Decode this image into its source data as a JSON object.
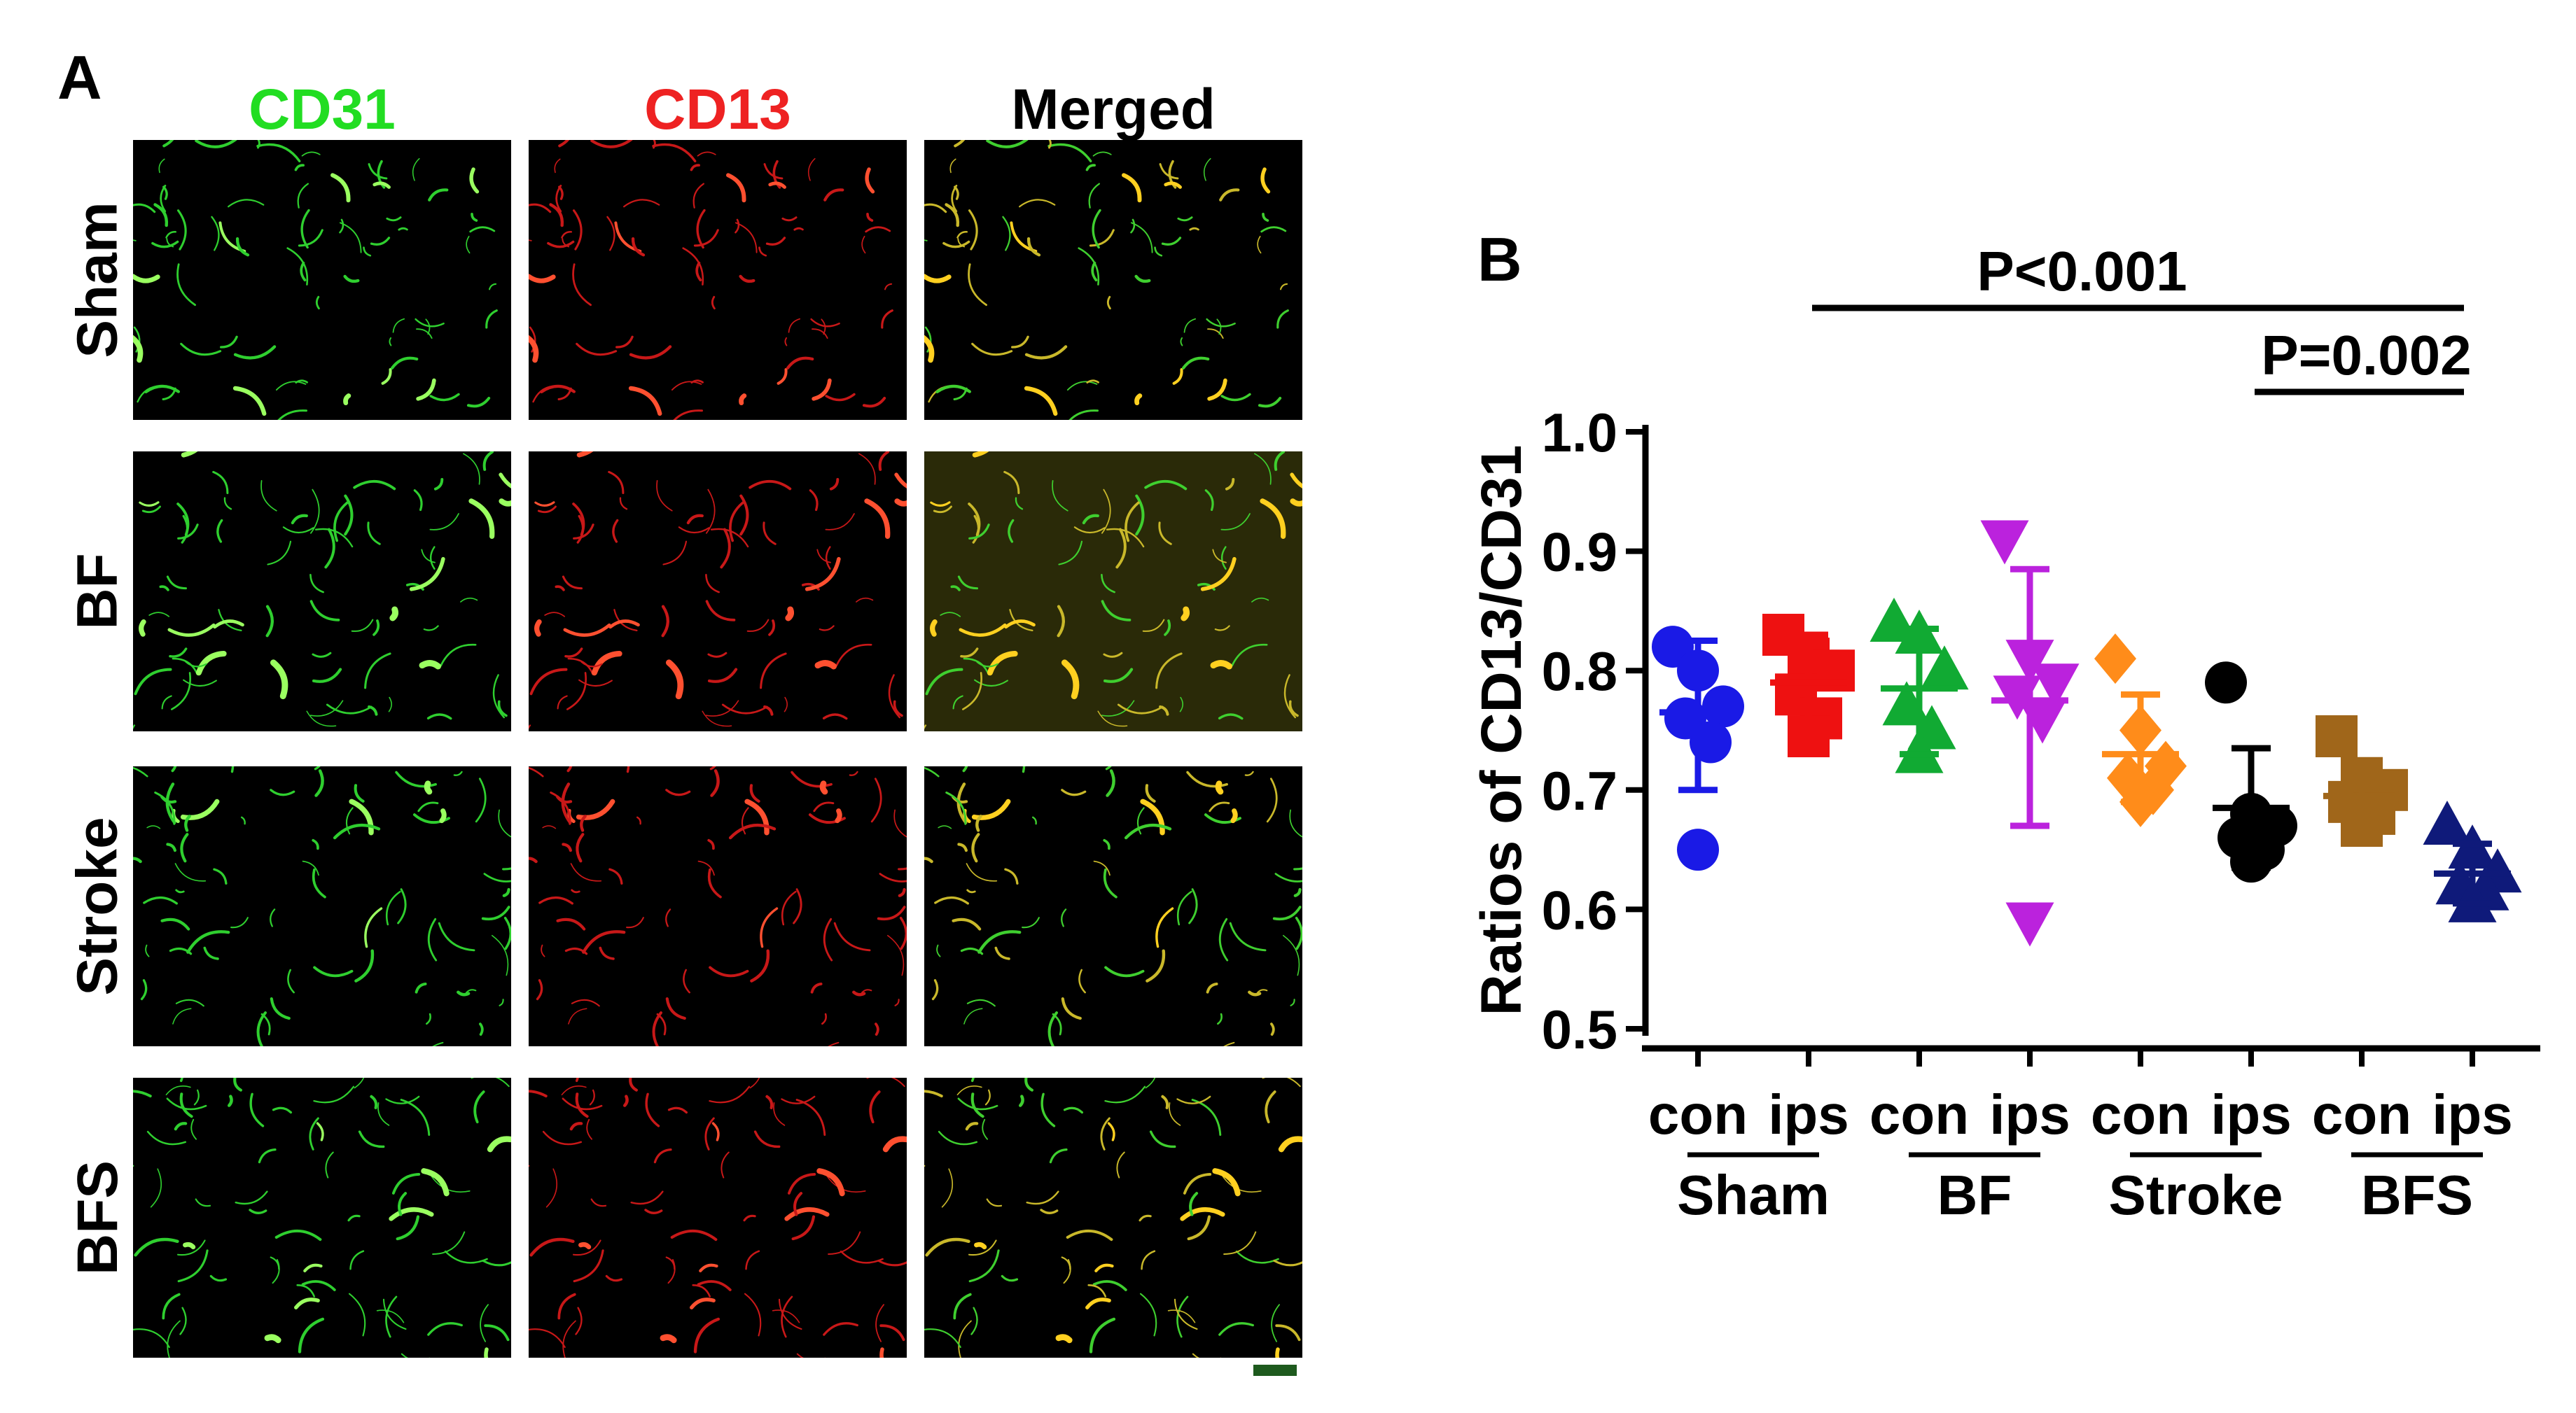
{
  "panel_a": {
    "label": "A",
    "columns": [
      {
        "label": "CD31",
        "color": "#22dd22"
      },
      {
        "label": "CD13",
        "color": "#ee2222"
      },
      {
        "label": "Merged",
        "color": "#000000"
      }
    ],
    "rows": [
      "Sham",
      "BF",
      "Stroke",
      "BFS"
    ]
  },
  "panel_b": {
    "label": "B"
  },
  "chart_data": {
    "type": "scatter",
    "title": "",
    "xlabel": "",
    "ylabel": "Ratios of CD13/CD31",
    "ylim": [
      0.5,
      1.0
    ],
    "yticks": [
      "0.5",
      "0.6",
      "0.7",
      "0.8",
      "0.9",
      "1.0"
    ],
    "categories": [
      "con",
      "ips",
      "con",
      "ips",
      "con",
      "ips",
      "con",
      "ips"
    ],
    "groups": [
      "Sham",
      "BF",
      "Stroke",
      "BFS"
    ],
    "series": [
      {
        "group": "Sham",
        "side": "con",
        "color": "#1a1ae6",
        "marker": "circle",
        "values": [
          0.82,
          0.8,
          0.77,
          0.76,
          0.74,
          0.65
        ],
        "mean": 0.765,
        "sd": [
          0.7,
          0.825
        ]
      },
      {
        "group": "Sham",
        "side": "ips",
        "color": "#ee1111",
        "marker": "square",
        "values": [
          0.83,
          0.81,
          0.8,
          0.78,
          0.76,
          0.745
        ],
        "mean": 0.79,
        "sd": [
          0.74,
          0.83
        ]
      },
      {
        "group": "BF",
        "side": "con",
        "color": "#11aa33",
        "marker": "triangle-up",
        "values": [
          0.84,
          0.83,
          0.8,
          0.77,
          0.75,
          0.73
        ],
        "mean": 0.785,
        "sd": [
          0.73,
          0.835
        ]
      },
      {
        "group": "BF",
        "side": "ips",
        "color": "#bb22dd",
        "marker": "triangle-down",
        "values": [
          0.91,
          0.81,
          0.79,
          0.78,
          0.76,
          0.59
        ],
        "mean": 0.775,
        "sd": [
          0.67,
          0.885
        ]
      },
      {
        "group": "Stroke",
        "side": "con",
        "color": "#ff8c1a",
        "marker": "diamond",
        "values": [
          0.81,
          0.75,
          0.72,
          0.71,
          0.7,
          0.69
        ],
        "mean": 0.73,
        "sd": [
          0.69,
          0.78
        ]
      },
      {
        "group": "Stroke",
        "side": "ips",
        "color": "#000000",
        "marker": "circle",
        "values": [
          0.79,
          0.68,
          0.67,
          0.66,
          0.65,
          0.64
        ],
        "mean": 0.685,
        "sd": [
          0.635,
          0.735
        ]
      },
      {
        "group": "BFS",
        "side": "con",
        "color": "#a0661a",
        "marker": "square",
        "values": [
          0.745,
          0.71,
          0.7,
          0.69,
          0.68,
          0.67
        ],
        "mean": 0.695,
        "sd": [
          0.67,
          0.72
        ]
      },
      {
        "group": "BFS",
        "side": "ips",
        "color": "#0f1a7a",
        "marker": "triangle-up",
        "values": [
          0.67,
          0.65,
          0.63,
          0.62,
          0.615,
          0.605
        ],
        "mean": 0.63,
        "sd": [
          0.605,
          0.655
        ]
      }
    ],
    "annotations": [
      {
        "text": "P<0.001",
        "from_index": 1,
        "to_index": 7
      },
      {
        "text": "P=0.002",
        "from_index": 5,
        "to_index": 7
      }
    ]
  }
}
